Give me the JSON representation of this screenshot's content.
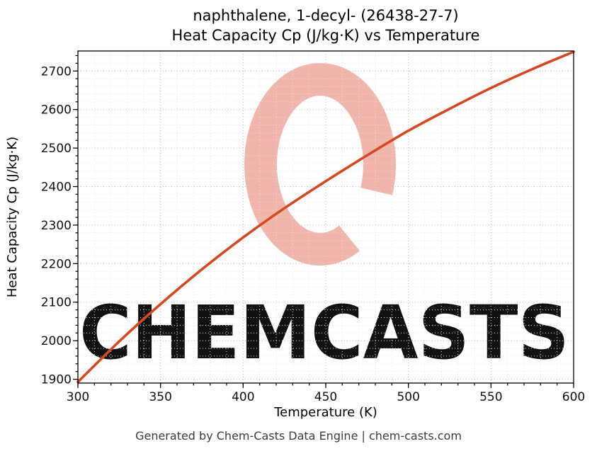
{
  "watermark": {
    "text": "CHEMCASTS",
    "color": "#f2b5aa"
  },
  "footer": "Generated by Chem-Casts Data Engine | chem-casts.com",
  "chart_data": {
    "type": "line",
    "title_line1": "naphthalene, 1-decyl- (26438-27-7)",
    "title_line2": "Heat Capacity Cp (J/kg·K) vs Temperature",
    "xlabel": "Temperature (K)",
    "ylabel": "Heat Capacity Cp (J/kg·K)",
    "x": [
      300,
      325,
      350,
      375,
      400,
      425,
      450,
      475,
      500,
      525,
      550,
      575,
      600
    ],
    "y": [
      1893,
      1998,
      2095,
      2185,
      2268,
      2344,
      2414,
      2481,
      2545,
      2602,
      2656,
      2705,
      2750
    ],
    "xlim": [
      300,
      600
    ],
    "ylim": [
      1890,
      2752
    ],
    "xticks": [
      300,
      350,
      400,
      450,
      500,
      550,
      600
    ],
    "yticks": [
      1900,
      2000,
      2100,
      2200,
      2300,
      2400,
      2500,
      2600,
      2700
    ],
    "grid": true,
    "legend": "none",
    "line_color": "#d8481f"
  }
}
